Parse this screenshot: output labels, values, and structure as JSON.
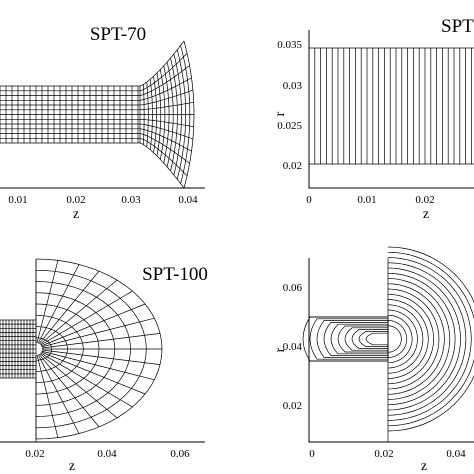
{
  "panels": {
    "top_left": {
      "title": "SPT-70",
      "xlabel": "z",
      "xticks": [
        "0.01",
        "0.02",
        "0.03",
        "0.04"
      ]
    },
    "top_right": {
      "title": "SPT",
      "xlabel": "z",
      "ylabel": "r",
      "xticks": [
        "0",
        "0.01",
        "0.02"
      ],
      "yticks": [
        "0.035",
        "0.03",
        "0.025",
        "0.02"
      ]
    },
    "bottom_left": {
      "title": "SPT-100",
      "xlabel": "z",
      "xticks": [
        "0.02",
        "0.04",
        "0.06"
      ]
    },
    "bottom_right": {
      "xlabel": "z",
      "ylabel": "r",
      "xticks": [
        "0",
        "0.02",
        "0.04"
      ],
      "yticks": [
        "0.06",
        "0.04",
        "0.02"
      ]
    }
  }
}
